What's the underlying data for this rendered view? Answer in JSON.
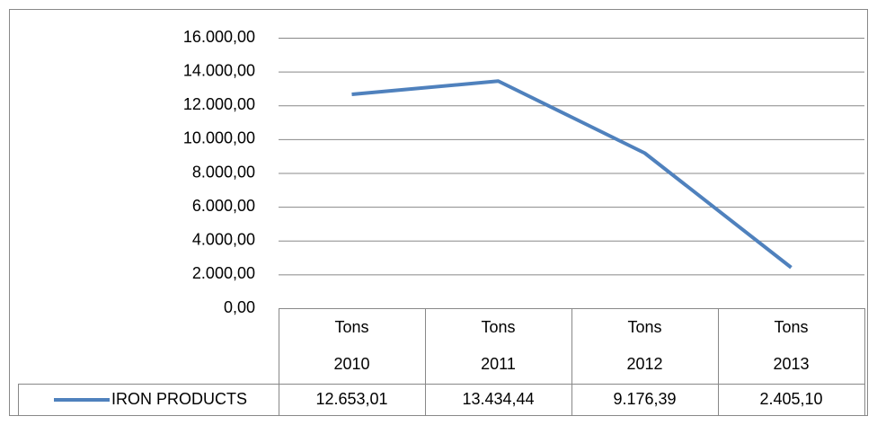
{
  "chart_data": {
    "type": "line",
    "categories": [
      [
        "Tons",
        "2010"
      ],
      [
        "Tons",
        "2011"
      ],
      [
        "Tons",
        "2012"
      ],
      [
        "Tons",
        "2013"
      ]
    ],
    "series": [
      {
        "name": "IRON PRODUCTS",
        "color": "#4f81bd",
        "values": [
          12653.01,
          13434.44,
          9176.39,
          2405.1
        ],
        "value_labels": [
          "12.653,01",
          "13.434,44",
          "9.176,39",
          "2.405,10"
        ]
      }
    ],
    "ylim": [
      0,
      16000
    ],
    "yticks": [
      {
        "value": 0,
        "label": "0,00"
      },
      {
        "value": 2000,
        "label": "2.000,00"
      },
      {
        "value": 4000,
        "label": "4.000,00"
      },
      {
        "value": 6000,
        "label": "6.000,00"
      },
      {
        "value": 8000,
        "label": "8.000,00"
      },
      {
        "value": 10000,
        "label": "10.000,00"
      },
      {
        "value": 12000,
        "label": "12.000,00"
      },
      {
        "value": 14000,
        "label": "14.000,00"
      },
      {
        "value": 16000,
        "label": "16.000,00"
      }
    ],
    "grid": true
  }
}
